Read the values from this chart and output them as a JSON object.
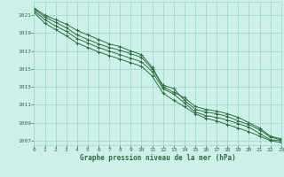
{
  "xlabel": "Graphe pression niveau de la mer (hPa)",
  "background_color": "#cdf0eb",
  "grid_color": "#99ddcc",
  "line_color": "#2d6e3e",
  "xlim": [
    0,
    23
  ],
  "ylim": [
    1006.5,
    1022.5
  ],
  "yticks": [
    1007,
    1009,
    1011,
    1013,
    1015,
    1017,
    1019,
    1021
  ],
  "xticks": [
    0,
    1,
    2,
    3,
    4,
    5,
    6,
    7,
    8,
    9,
    10,
    11,
    12,
    13,
    14,
    15,
    16,
    17,
    18,
    19,
    20,
    21,
    22,
    23
  ],
  "lines": [
    [
      1021.8,
      1021.0,
      1020.5,
      1020.0,
      1019.3,
      1018.8,
      1018.3,
      1017.8,
      1017.5,
      1017.0,
      1016.6,
      1015.2,
      1013.0,
      1012.4,
      1011.8,
      1010.8,
      1010.5,
      1010.3,
      1010.0,
      1009.6,
      1009.0,
      1008.4,
      1007.5,
      1007.2
    ],
    [
      1021.7,
      1020.8,
      1020.2,
      1019.6,
      1018.8,
      1018.3,
      1017.8,
      1017.4,
      1017.1,
      1016.7,
      1016.3,
      1015.0,
      1013.2,
      1012.8,
      1011.5,
      1010.5,
      1010.2,
      1010.0,
      1009.7,
      1009.2,
      1008.8,
      1008.2,
      1007.4,
      1007.1
    ],
    [
      1021.5,
      1020.5,
      1019.8,
      1019.2,
      1018.4,
      1017.9,
      1017.4,
      1017.0,
      1016.6,
      1016.2,
      1015.8,
      1014.7,
      1012.8,
      1012.2,
      1011.2,
      1010.2,
      1009.8,
      1009.6,
      1009.3,
      1008.9,
      1008.5,
      1007.8,
      1007.1,
      1007.0
    ],
    [
      1021.3,
      1020.1,
      1019.4,
      1018.7,
      1017.9,
      1017.4,
      1016.9,
      1016.5,
      1016.1,
      1015.7,
      1015.3,
      1014.2,
      1012.3,
      1011.5,
      1010.8,
      1010.0,
      1009.5,
      1009.2,
      1008.8,
      1008.4,
      1008.0,
      1007.5,
      1007.0,
      1006.8
    ]
  ]
}
